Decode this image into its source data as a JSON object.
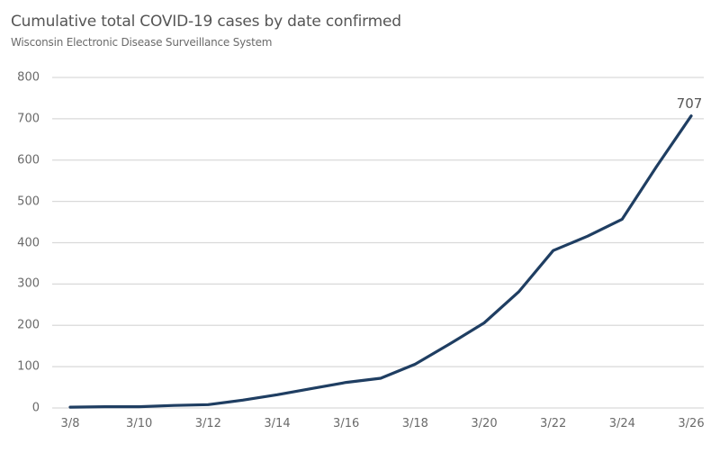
{
  "chart_data": {
    "type": "line",
    "title": "Cumulative total COVID-19 cases by date confirmed",
    "subtitle": "Wisconsin Electronic Disease Surveillance System",
    "xlabel": "",
    "ylabel": "",
    "ylim": [
      0,
      800
    ],
    "yticks": [
      "0",
      "100",
      "200",
      "300",
      "400",
      "500",
      "600",
      "700",
      "800"
    ],
    "xtick_labels": [
      "3/8",
      "3/10",
      "3/12",
      "3/14",
      "3/16",
      "3/18",
      "3/20",
      "3/22",
      "3/24",
      "3/26"
    ],
    "grid": true,
    "legend": null,
    "x": [
      "3/8",
      "3/9",
      "3/10",
      "3/11",
      "3/12",
      "3/13",
      "3/14",
      "3/15",
      "3/16",
      "3/17",
      "3/18",
      "3/19",
      "3/20",
      "3/21",
      "3/22",
      "3/23",
      "3/24",
      "3/25",
      "3/26"
    ],
    "series": [
      {
        "name": "Cumulative total cases",
        "color": "#1f3e62",
        "values": [
          2,
          3,
          3,
          6,
          8,
          19,
          32,
          47,
          62,
          72,
          106,
          155,
          206,
          281,
          381,
          416,
          457,
          585,
          707
        ]
      }
    ],
    "annotations": [
      {
        "x": "3/26",
        "text": "707"
      }
    ]
  },
  "colors": {
    "line": "#1f3e62",
    "grid": "#d9d9d9",
    "text": "#595959"
  }
}
